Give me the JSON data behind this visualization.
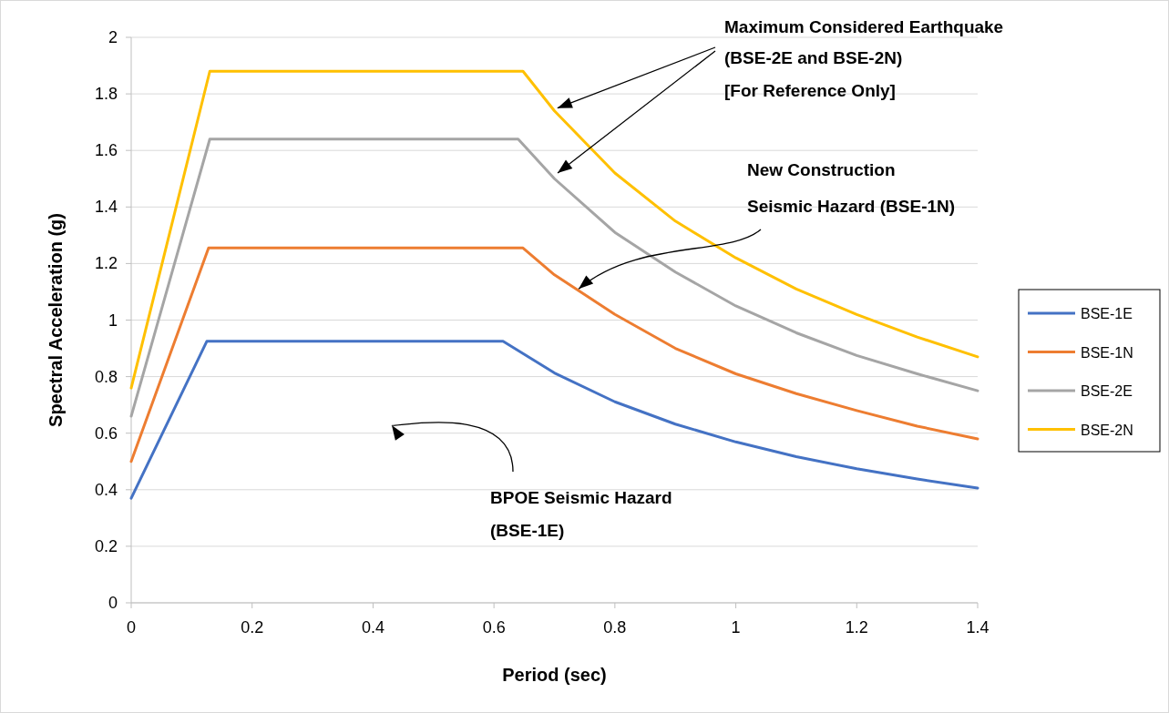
{
  "chart_data": {
    "type": "line",
    "xlabel": "Period (sec)",
    "ylabel": "Spectral Acceleration (g)",
    "xlim": [
      0,
      1.4
    ],
    "ylim": [
      0,
      2
    ],
    "xticks": [
      0,
      0.2,
      0.4,
      0.6,
      0.8,
      1,
      1.2,
      1.4
    ],
    "yticks": [
      0,
      0.2,
      0.4,
      0.6,
      0.8,
      1,
      1.2,
      1.4,
      1.6,
      1.8,
      2
    ],
    "grid": "y",
    "legend": "right",
    "marker": "none",
    "line_style": "solid",
    "series": [
      {
        "name": "BSE-1E",
        "color": "#4472c4",
        "x": [
          0,
          0.125,
          0.615,
          0.7,
          0.8,
          0.9,
          1,
          1.1,
          1.2,
          1.3,
          1.4
        ],
        "values": [
          0.37,
          0.925,
          0.925,
          0.813,
          0.711,
          0.632,
          0.569,
          0.517,
          0.474,
          0.438,
          0.406
        ]
      },
      {
        "name": "BSE-1N",
        "color": "#ed7d31",
        "x": [
          0,
          0.128,
          0.648,
          0.7,
          0.8,
          0.9,
          1,
          1.1,
          1.2,
          1.3,
          1.4
        ],
        "values": [
          0.5,
          1.255,
          1.255,
          1.16,
          1.02,
          0.9,
          0.81,
          0.74,
          0.68,
          0.625,
          0.58
        ]
      },
      {
        "name": "BSE-2E",
        "color": "#a5a5a5",
        "x": [
          0,
          0.13,
          0.64,
          0.7,
          0.8,
          0.9,
          1,
          1.1,
          1.2,
          1.3,
          1.4
        ],
        "values": [
          0.66,
          1.64,
          1.64,
          1.5,
          1.31,
          1.17,
          1.05,
          0.955,
          0.875,
          0.81,
          0.75
        ]
      },
      {
        "name": "BSE-2N",
        "color": "#ffc000",
        "x": [
          0,
          0.13,
          0.648,
          0.7,
          0.8,
          0.9,
          1,
          1.1,
          1.2,
          1.3,
          1.4
        ],
        "values": [
          0.76,
          1.88,
          1.88,
          1.74,
          1.52,
          1.35,
          1.22,
          1.11,
          1.02,
          0.94,
          0.87
        ]
      }
    ],
    "annotations": [
      {
        "text": "Maximum Considered Earthquake\n(BSE-2E and BSE-2N)\n[For Reference Only]",
        "x": 0.705,
        "y": 1.75
      },
      {
        "text": "New Construction\nSeismic Hazard (BSE-1N)",
        "x": 0.74,
        "y": 1.11
      },
      "BPOE Seismic Hazard\n(BSE-1E)"
    ]
  }
}
